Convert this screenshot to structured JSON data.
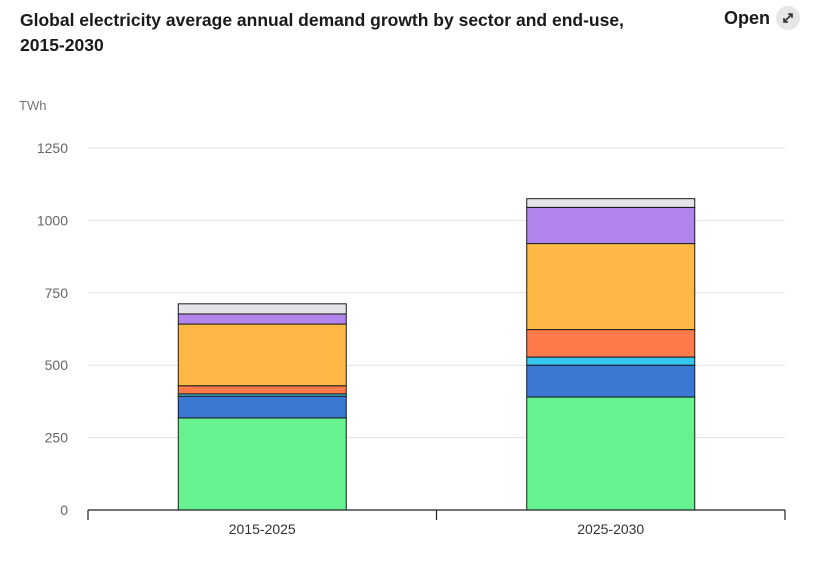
{
  "header": {
    "title_line1": "Global electricity average annual demand growth by sector and end-use,",
    "title_line2": "2015-2030",
    "open_label": "Open",
    "open_icon": "expand-arrows-icon"
  },
  "chart_data": {
    "type": "bar",
    "stacked": true,
    "title": "Global electricity average annual demand growth by sector and end-use, 2015-2030",
    "ylabel": "TWh",
    "ylim": [
      0,
      1250
    ],
    "yticks": [
      0,
      250,
      500,
      750,
      1000,
      1250
    ],
    "grid": true,
    "categories": [
      "2015-2025",
      "2025-2030"
    ],
    "series": [
      {
        "color": "#66f28f",
        "values": [
          318,
          390
        ]
      },
      {
        "color": "#3b78d4",
        "values": [
          75,
          110
        ]
      },
      {
        "color": "#35c7f0",
        "values": [
          8,
          28
        ]
      },
      {
        "color": "#ff7a4a",
        "values": [
          28,
          95
        ]
      },
      {
        "color": "#fdb845",
        "values": [
          213,
          297
        ]
      },
      {
        "color": "#b185ec",
        "values": [
          35,
          125
        ]
      },
      {
        "color": "#e4e4ea",
        "values": [
          35,
          30
        ]
      }
    ]
  }
}
